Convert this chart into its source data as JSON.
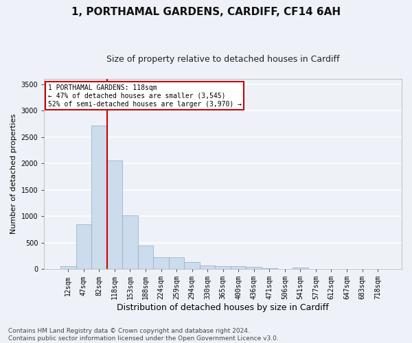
{
  "title": "1, PORTHAMAL GARDENS, CARDIFF, CF14 6AH",
  "subtitle": "Size of property relative to detached houses in Cardiff",
  "xlabel": "Distribution of detached houses by size in Cardiff",
  "ylabel": "Number of detached properties",
  "categories": [
    "12sqm",
    "47sqm",
    "82sqm",
    "118sqm",
    "153sqm",
    "188sqm",
    "224sqm",
    "259sqm",
    "294sqm",
    "330sqm",
    "365sqm",
    "400sqm",
    "436sqm",
    "471sqm",
    "506sqm",
    "541sqm",
    "577sqm",
    "612sqm",
    "647sqm",
    "683sqm",
    "718sqm"
  ],
  "values": [
    60,
    850,
    2720,
    2060,
    1010,
    450,
    225,
    225,
    130,
    70,
    55,
    55,
    35,
    20,
    0,
    25,
    0,
    0,
    0,
    0,
    0
  ],
  "bar_color": "#ccdcec",
  "bar_edgecolor": "#88aac8",
  "vline_color": "#cc0000",
  "annotation_text": "1 PORTHAMAL GARDENS: 118sqm\n← 47% of detached houses are smaller (3,545)\n52% of semi-detached houses are larger (3,970) →",
  "annotation_box_color": "#cc0000",
  "ylim": [
    0,
    3600
  ],
  "yticks": [
    0,
    500,
    1000,
    1500,
    2000,
    2500,
    3000,
    3500
  ],
  "footer_line1": "Contains HM Land Registry data © Crown copyright and database right 2024.",
  "footer_line2": "Contains public sector information licensed under the Open Government Licence v3.0.",
  "background_color": "#eef2f8",
  "plot_background": "#eef2f8",
  "grid_color": "#ffffff",
  "title_fontsize": 11,
  "subtitle_fontsize": 9,
  "xlabel_fontsize": 9,
  "ylabel_fontsize": 8,
  "tick_fontsize": 7,
  "footer_fontsize": 6.5
}
